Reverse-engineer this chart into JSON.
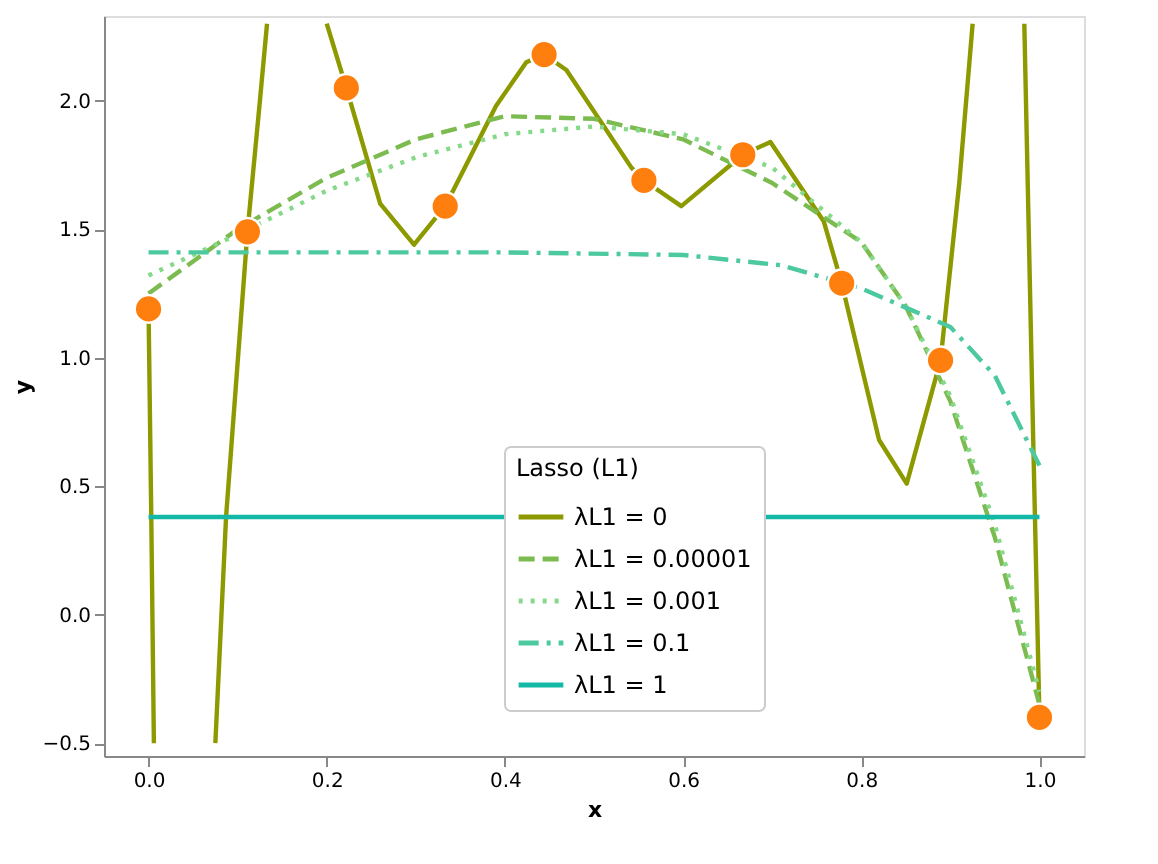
{
  "chart_data": {
    "type": "line",
    "xlabel": "x",
    "ylabel": "y",
    "legend_title": "Lasso (L1)",
    "legend": "bottom",
    "grid": false,
    "xlim": [
      -0.05,
      1.05
    ],
    "ylim": [
      -0.55,
      2.33
    ],
    "xticks": [
      {
        "value": 0,
        "label": "0.0"
      },
      0.2,
      0.4,
      0.6,
      0.8,
      {
        "value": 1,
        "label": "1.0"
      }
    ],
    "yticks": [
      {
        "value": -0.5,
        "label": "−0.5"
      },
      {
        "value": 0,
        "label": "0.0"
      },
      0.5,
      {
        "value": 1,
        "label": "1.0"
      },
      1.5,
      {
        "value": 2,
        "label": "2.0"
      }
    ],
    "series": [
      {
        "name": "λL1 = 0",
        "color": "#8c9a00",
        "line_style": "solid",
        "x": [
          0,
          0.003,
          0.006,
          0.04,
          0.075,
          0.087,
          0.111,
          0.125,
          0.133,
          0.17,
          0.2,
          0.222,
          0.26,
          0.298,
          0.333,
          0.39,
          0.424,
          0.444,
          0.469,
          0.542,
          0.556,
          0.598,
          0.667,
          0.698,
          0.758,
          0.778,
          0.82,
          0.851,
          0.889,
          0.91,
          0.925,
          0.95,
          0.983,
          0.993,
          1.0
        ],
        "values": [
          1.19,
          0.4,
          -0.5,
          null,
          -0.5,
          0.38,
          1.49,
          2.0,
          2.3,
          null,
          2.3,
          2.05,
          1.6,
          1.44,
          1.59,
          1.98,
          2.15,
          2.18,
          2.12,
          1.74,
          1.69,
          1.59,
          1.79,
          1.84,
          1.53,
          1.29,
          0.68,
          0.51,
          0.99,
          1.68,
          2.3,
          null,
          2.3,
          0.68,
          -0.4
        ]
      },
      {
        "name": "λL1 = 0.00001",
        "color": "#7cbb50",
        "line_style": "dashed",
        "x": [
          0,
          0.1,
          0.2,
          0.3,
          0.4,
          0.5,
          0.6,
          0.7,
          0.8,
          0.85,
          0.9,
          0.95,
          1.0
        ],
        "values": [
          1.25,
          1.5,
          1.7,
          1.85,
          1.94,
          1.93,
          1.85,
          1.68,
          1.45,
          1.2,
          0.83,
          0.3,
          -0.35
        ]
      },
      {
        "name": "λL1 = 0.001",
        "color": "#87d98a",
        "line_style": "dotted",
        "x": [
          0,
          0.1,
          0.2,
          0.3,
          0.4,
          0.5,
          0.6,
          0.7,
          0.8,
          0.85,
          0.9,
          0.95,
          1.0
        ],
        "values": [
          1.32,
          1.48,
          1.65,
          1.78,
          1.87,
          1.9,
          1.87,
          1.74,
          1.45,
          1.2,
          0.85,
          0.35,
          -0.3
        ]
      },
      {
        "name": "λL1 = 0.1",
        "color": "#4cc99e",
        "line_style": "dashdot",
        "x": [
          0,
          0.2,
          0.4,
          0.6,
          0.71,
          0.8,
          0.9,
          0.95,
          1.0
        ],
        "values": [
          1.41,
          1.41,
          1.41,
          1.4,
          1.36,
          1.27,
          1.12,
          0.93,
          0.58
        ]
      },
      {
        "name": "λL1 = 1",
        "color": "#14b8a6",
        "line_style": "solid",
        "x": [
          0,
          1.0
        ],
        "values": [
          0.38,
          0.38
        ]
      },
      {
        "type": "scatter",
        "color": "#ff7f0e",
        "marker": "circle",
        "x": [
          0,
          0.111,
          0.222,
          0.333,
          0.444,
          0.556,
          0.667,
          0.778,
          0.889,
          1.0
        ],
        "values": [
          1.19,
          1.49,
          2.05,
          1.59,
          2.18,
          1.69,
          1.79,
          1.29,
          0.99,
          -0.4
        ]
      }
    ]
  }
}
